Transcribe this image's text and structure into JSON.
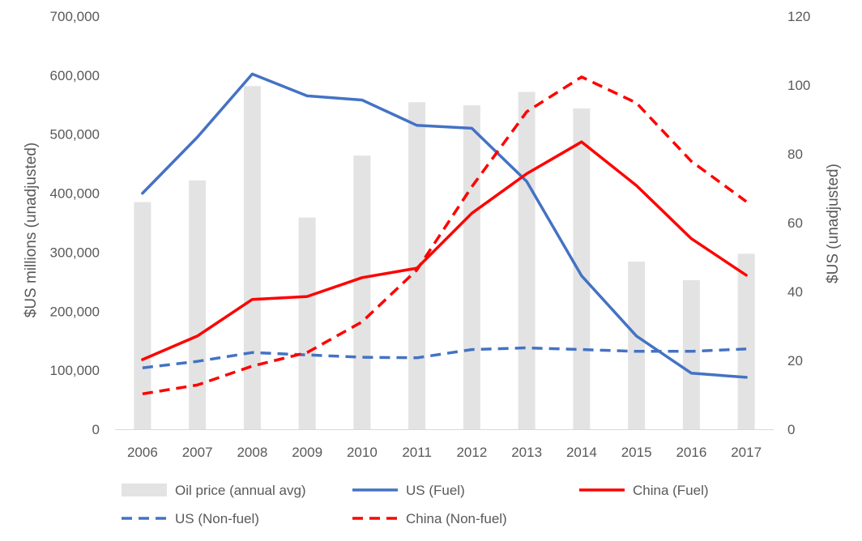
{
  "chart_data": {
    "type": "bar+line",
    "title": "",
    "categories": [
      "2006",
      "2007",
      "2008",
      "2009",
      "2010",
      "2011",
      "2012",
      "2013",
      "2014",
      "2015",
      "2016",
      "2017"
    ],
    "ylabel_left": "$US millions (unadjusted)",
    "ylabel_right": "$US (unadjusted)",
    "ylim_left": [
      0,
      700000
    ],
    "ylim_right": [
      0,
      120
    ],
    "yticks_left": [
      "0",
      "100,000",
      "200,000",
      "300,000",
      "400,000",
      "500,000",
      "600,000",
      "700,000"
    ],
    "yticks_right": [
      "0",
      "20",
      "40",
      "60",
      "80",
      "100",
      "120"
    ],
    "grid": false,
    "legend_position": "bottom",
    "bars": {
      "name": "Oil price (annual avg)",
      "axis": "right",
      "color": "#e3e3e3",
      "values": [
        66,
        72.3,
        99.7,
        61.5,
        79.5,
        95,
        94.1,
        98,
        93.2,
        48.7,
        43.3,
        51
      ]
    },
    "series": [
      {
        "name": "US (Fuel)",
        "axis": "left",
        "color": "#4472c4",
        "dash": false,
        "values": [
          400000,
          495000,
          602000,
          565000,
          558000,
          515000,
          510000,
          420000,
          260000,
          158000,
          95000,
          88000
        ]
      },
      {
        "name": "China (Fuel)",
        "axis": "left",
        "color": "#ff0000",
        "dash": false,
        "values": [
          118000,
          158000,
          220000,
          225000,
          257000,
          273000,
          366000,
          433000,
          487000,
          413000,
          323000,
          261000
        ]
      },
      {
        "name": "US (Non-fuel)",
        "axis": "left",
        "color": "#4472c4",
        "dash": true,
        "values": [
          104000,
          115000,
          130000,
          126000,
          122000,
          121000,
          135000,
          138000,
          135000,
          132000,
          132000,
          136000
        ]
      },
      {
        "name": "China (Non-fuel)",
        "axis": "left",
        "color": "#ff0000",
        "dash": true,
        "values": [
          60000,
          75000,
          107000,
          130000,
          182000,
          270000,
          411000,
          538000,
          597000,
          553000,
          454000,
          386000
        ]
      }
    ]
  }
}
